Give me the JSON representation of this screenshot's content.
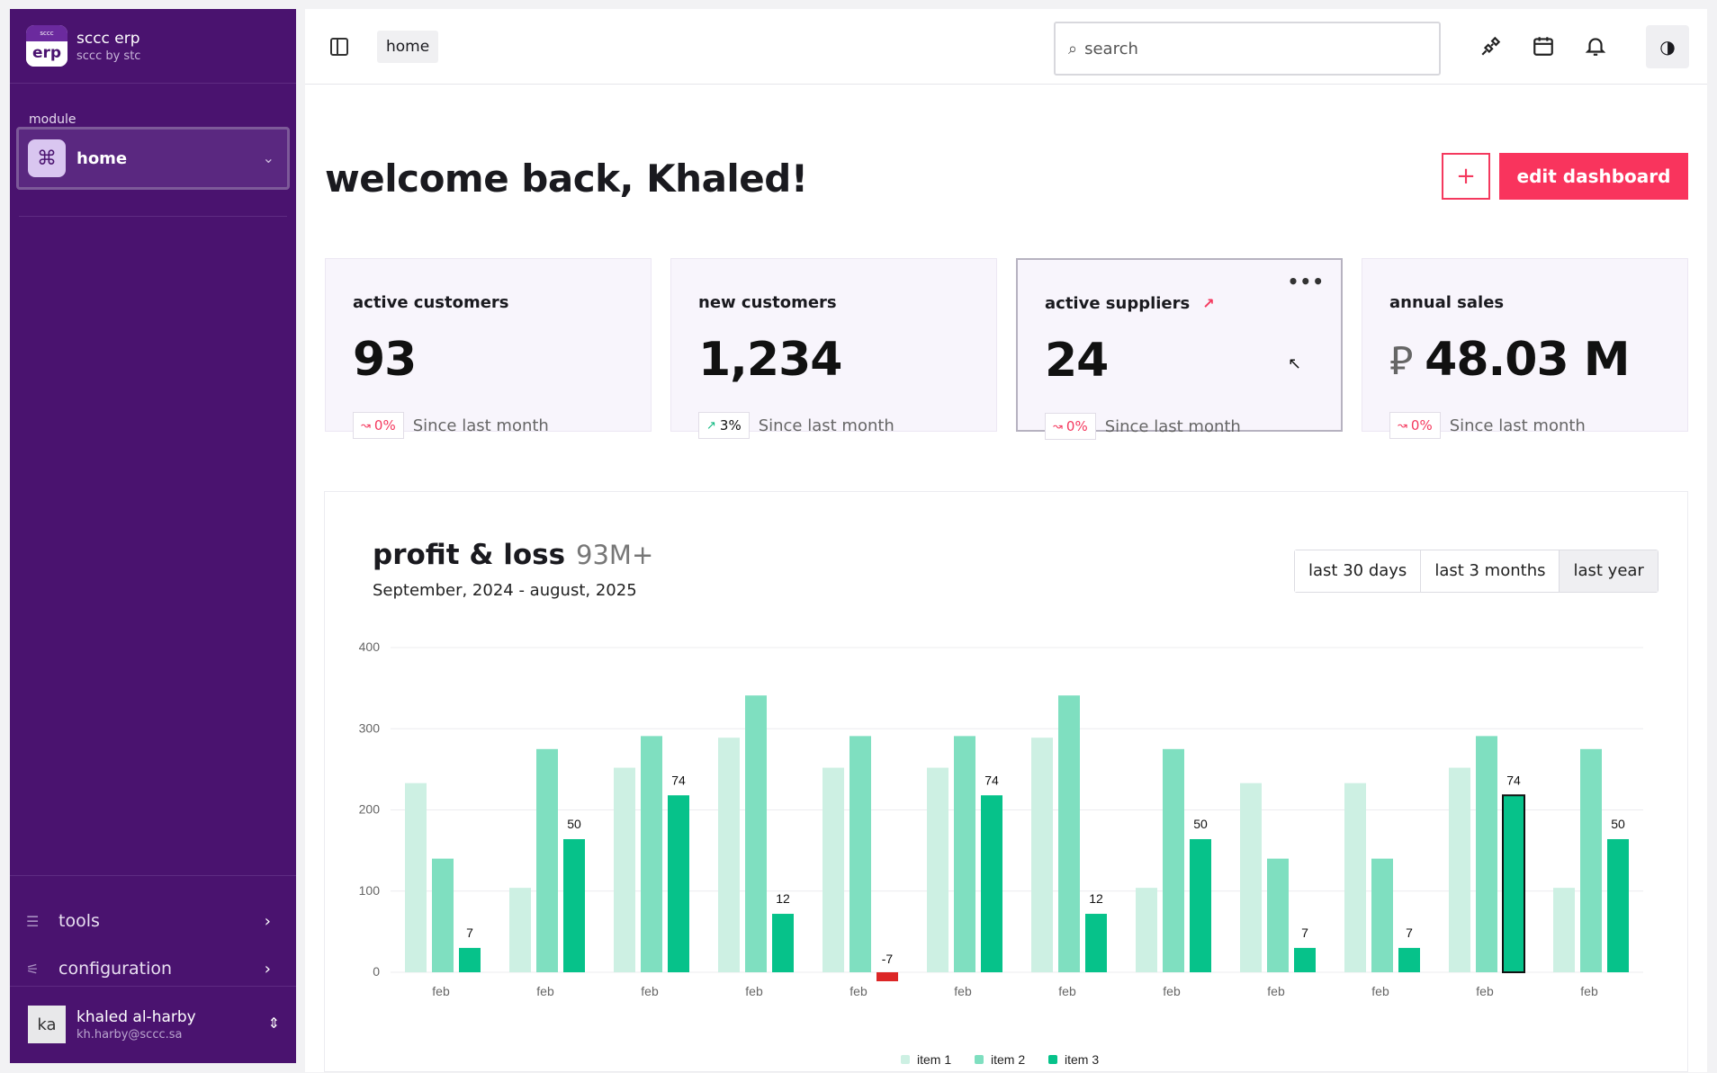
{
  "sidebar": {
    "brand": {
      "logo_top": "sccc",
      "logo_text": "erp",
      "name": "sccc erp",
      "sub": "sccc by stc"
    },
    "module_label": "module",
    "module": {
      "icon": "command-icon",
      "name": "home"
    },
    "items": [
      {
        "label": "tools",
        "icon": "list-icon"
      },
      {
        "label": "configuration",
        "icon": "sliders-icon"
      }
    ],
    "user": {
      "initials": "ka",
      "name": "khaled al-harby",
      "email": "kh.harby@sccc.sa"
    }
  },
  "topbar": {
    "breadcrumb": "home",
    "search_placeholder": "search",
    "icons": [
      "plug-icon",
      "calendar-icon",
      "bell-icon",
      "theme-toggle-icon"
    ]
  },
  "page": {
    "welcome": "welcome back, Khaled!",
    "add_label": "+",
    "edit_label": "edit dashboard"
  },
  "cards": [
    {
      "title": "active customers",
      "value": "93",
      "change": "0%",
      "trend": "down",
      "since": "Since last month"
    },
    {
      "title": "new customers",
      "value": "1,234",
      "change": "3%",
      "trend": "up",
      "since": "Since last month"
    },
    {
      "title": "active suppliers",
      "value": "24",
      "change": "0%",
      "trend": "down",
      "since": "Since last month"
    },
    {
      "title": "annual sales",
      "currency": "⃁",
      "value": "48.03 M",
      "change": "0%",
      "trend": "down",
      "since": "Since last month"
    }
  ],
  "profit_loss": {
    "title": "profit & loss",
    "total": "93M+",
    "range": "September, 2024 - august, 2025",
    "periods": [
      "last 30 days",
      "last 3 months",
      "last year"
    ],
    "active_period": "last year"
  },
  "colors": {
    "accent": "#f9345d",
    "sidebar": "#4a136f",
    "item1": "#cdf0e3",
    "item2": "#7fdfc0",
    "item3": "#06c28a",
    "negative": "#dc2626"
  },
  "chart_data": {
    "type": "bar",
    "categories": [
      "feb",
      "feb",
      "feb",
      "feb",
      "feb",
      "feb",
      "feb",
      "feb",
      "feb",
      "feb",
      "feb",
      "feb"
    ],
    "series": [
      {
        "name": "item 1",
        "values": [
          233,
          104,
          252,
          289,
          252,
          252,
          289,
          104,
          233,
          233,
          252,
          104
        ]
      },
      {
        "name": "item 2",
        "values": [
          140,
          275,
          291,
          341,
          291,
          291,
          341,
          275,
          140,
          140,
          291,
          275
        ]
      },
      {
        "name": "item 3",
        "values": [
          30,
          164,
          218,
          72,
          -7,
          218,
          72,
          164,
          30,
          30,
          218,
          164
        ]
      }
    ],
    "data_labels": [
      "7",
      "50",
      "74",
      "12",
      "-7",
      "74",
      "12",
      "50",
      "7",
      "7",
      "74",
      "50"
    ],
    "yticks": [
      "0",
      "100",
      "200",
      "300",
      "400"
    ],
    "ylim": [
      0,
      400
    ],
    "grid": true,
    "legend": "bottom-center",
    "highlighted_index": 10
  }
}
